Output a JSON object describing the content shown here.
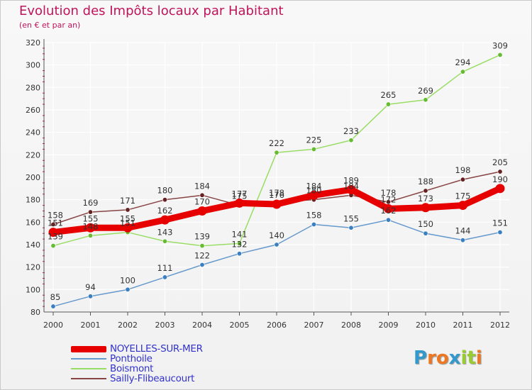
{
  "colors": {
    "title": "#c0145a",
    "axis": "#555555",
    "grid": "#ffffff",
    "tick_mark": "#c0145a"
  },
  "chart_data": {
    "type": "line",
    "title": "Evolution des Impôts locaux par Habitant",
    "subtitle": "(en € et par an)",
    "x": [
      "2000",
      "2001",
      "2002",
      "2003",
      "2004",
      "2005",
      "2006",
      "2007",
      "2008",
      "2009",
      "2010",
      "2011",
      "2012"
    ],
    "ylim": [
      80,
      320
    ],
    "yticks": [
      80,
      100,
      120,
      140,
      160,
      180,
      200,
      220,
      240,
      260,
      280,
      300,
      320
    ],
    "grid": true,
    "legend": "bottom-left",
    "series": [
      {
        "name": "NOYELLES-SUR-MER",
        "color": "#e60000",
        "marker": "#e60000",
        "values": [
          151,
          155,
          155,
          162,
          170,
          177,
          176,
          184,
          189,
          172,
          173,
          175,
          190
        ]
      },
      {
        "name": "Ponthoile",
        "color": "#6699cc",
        "marker": "#3a7fc0",
        "values": [
          85,
          94,
          100,
          111,
          122,
          132,
          140,
          158,
          155,
          162,
          150,
          144,
          151
        ]
      },
      {
        "name": "Boismont",
        "color": "#99dd66",
        "marker": "#66bb33",
        "values": [
          139,
          148,
          151,
          143,
          139,
          141,
          222,
          225,
          233,
          265,
          269,
          294,
          309
        ]
      },
      {
        "name": "Sailly-Flibeaucourt",
        "color": "#884444",
        "marker": "#662222",
        "values": [
          158,
          169,
          171,
          180,
          184,
          175,
          178,
          180,
          184,
          178,
          188,
          198,
          205
        ]
      }
    ]
  },
  "logo": {
    "letters": [
      "P",
      "r",
      "o",
      "x",
      "i",
      "t",
      "i"
    ],
    "colors": [
      "#3399cc",
      "#ee7722",
      "#ee7722",
      "#3399cc",
      "#99cc33",
      "#99cc33",
      "#ee7722"
    ]
  }
}
